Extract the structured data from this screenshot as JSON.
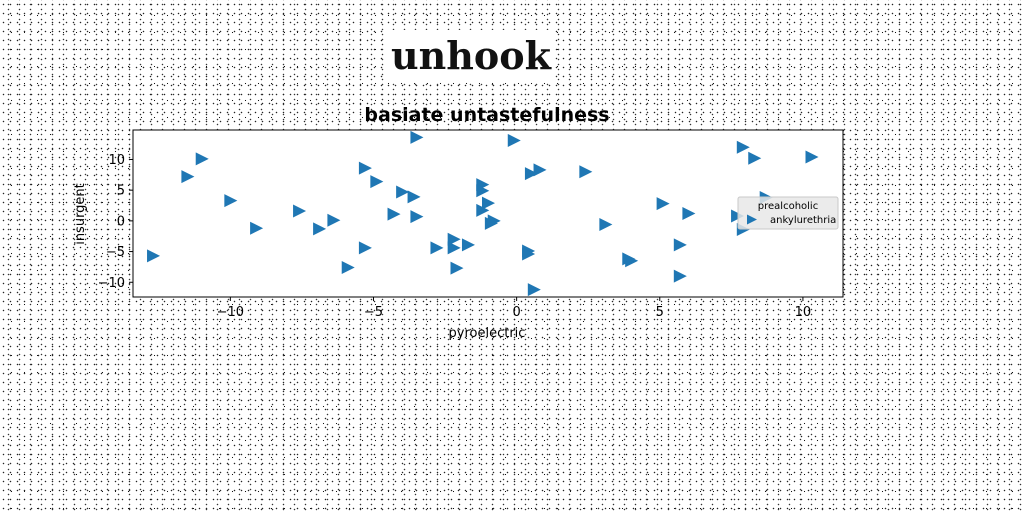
{
  "page": {
    "title": "unhook"
  },
  "chart_data": {
    "type": "scatter",
    "title": "basiate untastefulness",
    "xlabel": "pyroelectric",
    "ylabel": "insurgent",
    "xlim": [
      -13.4,
      11.4
    ],
    "ylim": [
      -12.4,
      14.8
    ],
    "xticks": [
      -10,
      -5,
      0,
      5,
      10
    ],
    "xtick_labels": [
      "−10",
      "−5",
      "0",
      "5",
      "10"
    ],
    "yticks": [
      -10,
      -5,
      0,
      5,
      10
    ],
    "ytick_labels": [
      "−10",
      "−5",
      "0",
      "5",
      "10"
    ],
    "grid": false,
    "legend": {
      "title": "prealcoholic",
      "entries": [
        "ankylurethria"
      ],
      "placement": "right"
    },
    "marker": "triangle-right",
    "color": "#1f77b4",
    "series": [
      {
        "name": "ankylurethria",
        "points": [
          [
            -12.7,
            -5.7
          ],
          [
            -11.5,
            7.2
          ],
          [
            -11.0,
            10.1
          ],
          [
            -10.0,
            3.3
          ],
          [
            -9.1,
            -1.2
          ],
          [
            -7.6,
            1.6
          ],
          [
            -6.9,
            -1.3
          ],
          [
            -6.4,
            0.1
          ],
          [
            -5.9,
            -7.6
          ],
          [
            -5.3,
            -4.4
          ],
          [
            -5.3,
            8.6
          ],
          [
            -4.9,
            6.4
          ],
          [
            -4.3,
            1.1
          ],
          [
            -4.0,
            4.7
          ],
          [
            -3.6,
            3.9
          ],
          [
            -3.5,
            0.7
          ],
          [
            -3.5,
            13.6
          ],
          [
            -2.8,
            -4.4
          ],
          [
            -2.2,
            -4.4
          ],
          [
            -2.2,
            -3.0
          ],
          [
            -2.1,
            -7.7
          ],
          [
            -1.7,
            -3.9
          ],
          [
            -1.2,
            5.9
          ],
          [
            -1.2,
            4.9
          ],
          [
            -1.2,
            1.7
          ],
          [
            -1.0,
            2.9
          ],
          [
            -0.9,
            -0.4
          ],
          [
            -0.8,
            0.0
          ],
          [
            -0.1,
            13.1
          ],
          [
            0.4,
            -4.9
          ],
          [
            0.4,
            -5.4
          ],
          [
            0.5,
            7.7
          ],
          [
            0.6,
            -11.2
          ],
          [
            0.8,
            8.3
          ],
          [
            2.4,
            8.0
          ],
          [
            3.1,
            -0.6
          ],
          [
            3.9,
            -6.2
          ],
          [
            4.0,
            -6.5
          ],
          [
            5.1,
            2.8
          ],
          [
            5.7,
            -3.9
          ],
          [
            5.7,
            -9.0
          ],
          [
            6.0,
            1.2
          ],
          [
            7.7,
            0.8
          ],
          [
            7.9,
            -1.4
          ],
          [
            7.9,
            12.0
          ],
          [
            8.3,
            10.2
          ],
          [
            8.7,
            3.8
          ],
          [
            10.3,
            10.4
          ]
        ]
      }
    ]
  }
}
